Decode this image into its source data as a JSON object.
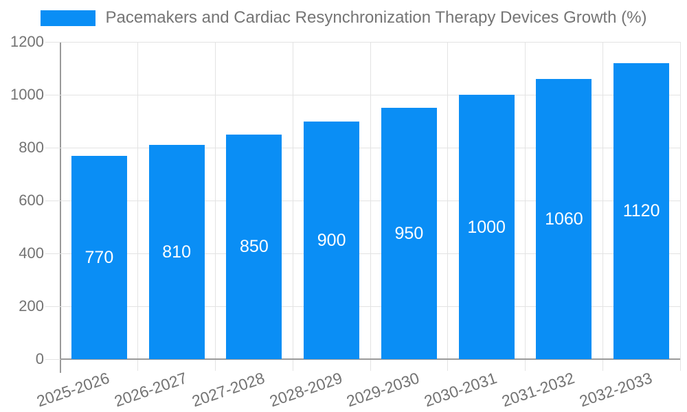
{
  "legend": {
    "label": "Pacemakers and Cardiac Resynchronization Therapy Devices Growth (%)"
  },
  "chart_data": {
    "type": "bar",
    "title": "Pacemakers and Cardiac Resynchronization Therapy Devices Growth (%)",
    "categories": [
      "2025-2026",
      "2026-2027",
      "2027-2028",
      "2028-2029",
      "2029-2030",
      "2030-2031",
      "2031-2032",
      "2032-2033"
    ],
    "values": [
      770,
      810,
      850,
      900,
      950,
      1000,
      1060,
      1120
    ],
    "bar_value_labels": [
      "770",
      "810",
      "850",
      "900",
      "950",
      "1000",
      "1060",
      "1120"
    ],
    "xlabel": "",
    "ylabel": "",
    "ylim": [
      0,
      1200
    ],
    "ytick_step": 200,
    "yticks": [
      0,
      200,
      400,
      600,
      800,
      1000,
      1200
    ],
    "grid": true,
    "legend_position": "top"
  },
  "colors": {
    "bar": "#0a8ef5",
    "bar_label_text": "#ffffff",
    "grid": "#e3e3e3",
    "axis": "#999999",
    "text": "#737373",
    "legend_text": "#757575",
    "background": "#ffffff"
  }
}
